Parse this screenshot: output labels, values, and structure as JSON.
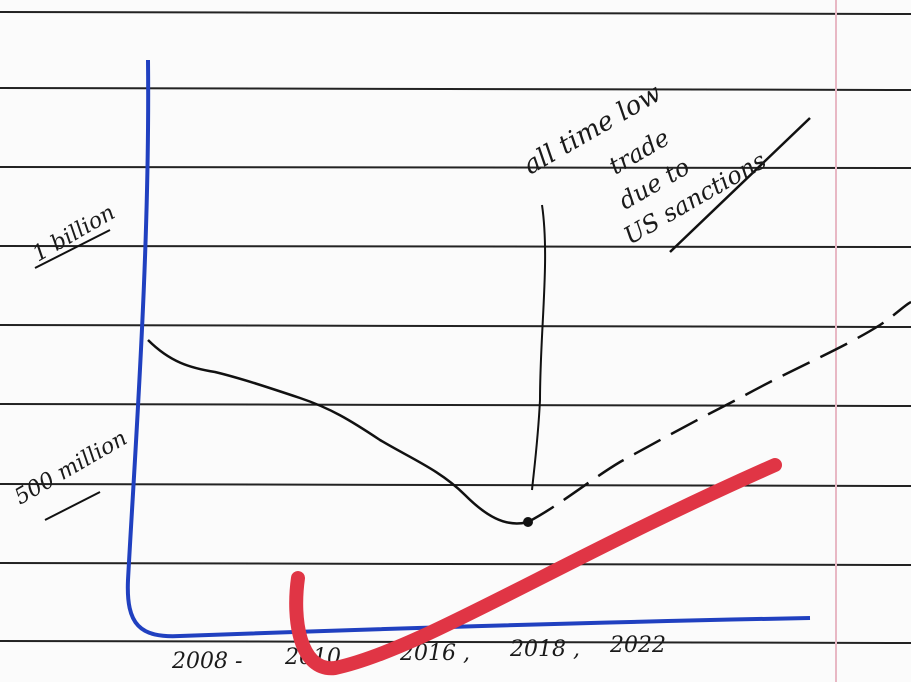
{
  "y_labels": [
    "1 billion",
    "500 million"
  ],
  "annotation": [
    "all time low",
    "trade",
    "due to",
    "US sanctions"
  ],
  "x_labels": [
    "2008 -",
    "2010 ,",
    "2016 ,",
    "2018 ,",
    "2022"
  ]
}
